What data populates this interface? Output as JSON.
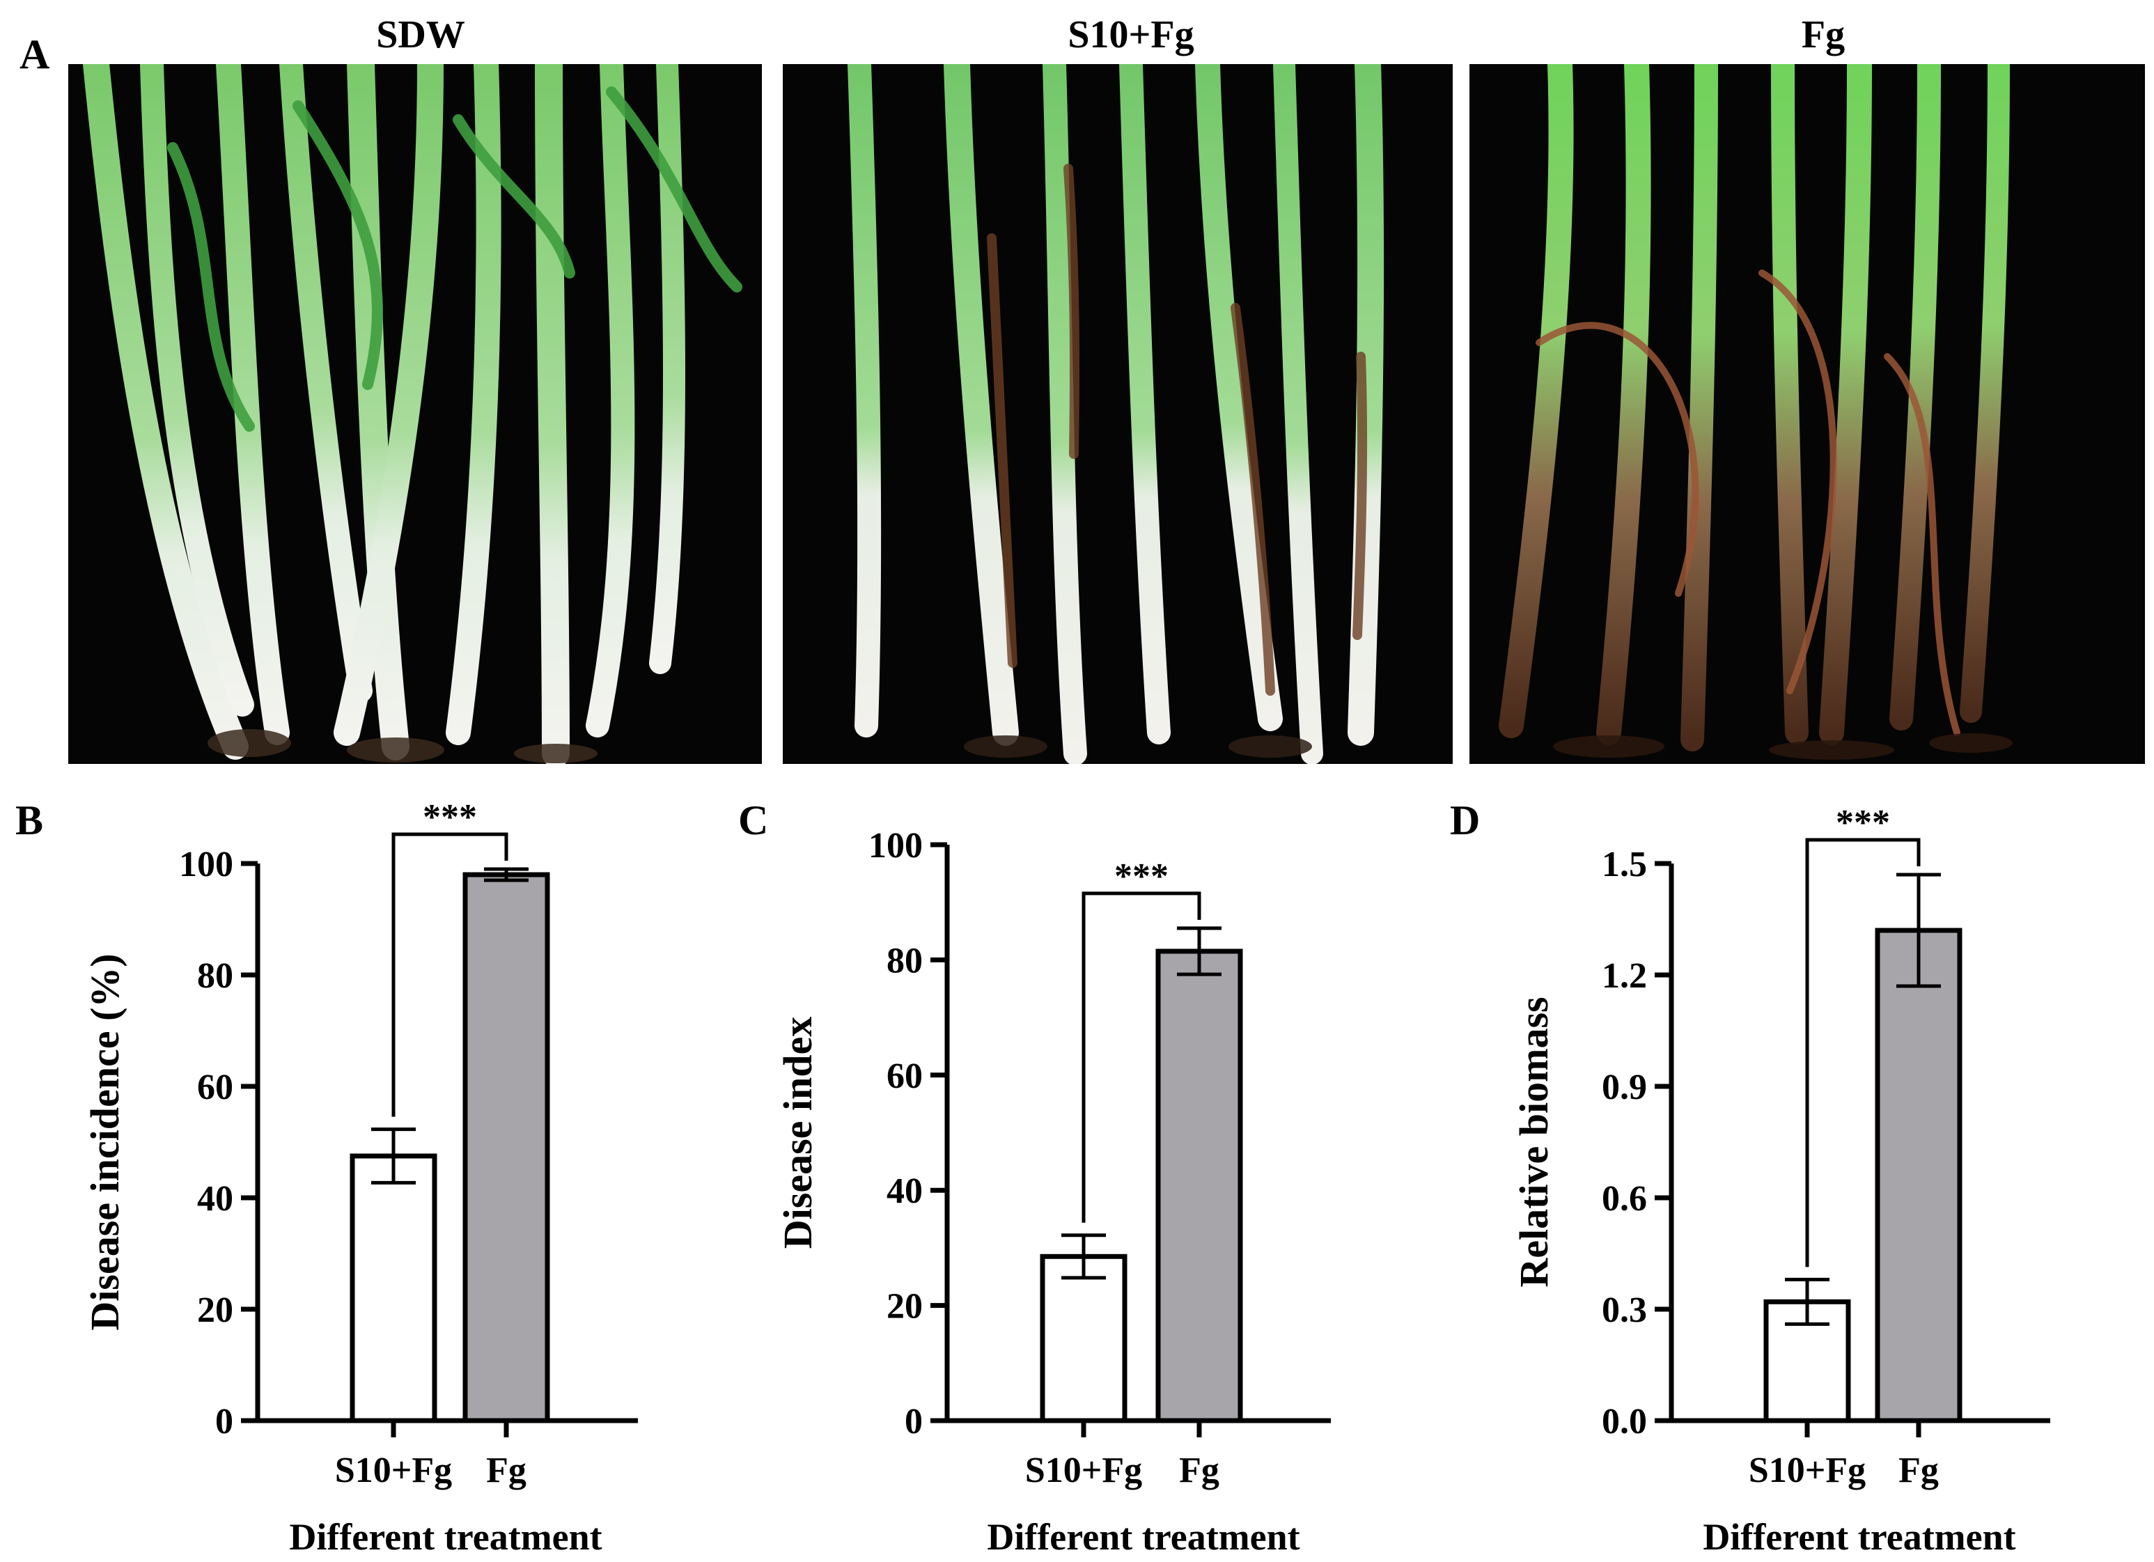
{
  "panel_labels": {
    "a": "A",
    "b": "B",
    "c": "C",
    "d": "D"
  },
  "photos": [
    {
      "title": "SDW"
    },
    {
      "title": "S10+Fg"
    },
    {
      "title": "Fg"
    }
  ],
  "colors": {
    "control_bar": "#ffffff",
    "fg_bar": "#a7a5aa",
    "photo_bg": "#050505"
  },
  "chart_data": [
    {
      "type": "bar",
      "panel": "B",
      "categories": [
        "S10+Fg",
        "Fg"
      ],
      "values": [
        47.5,
        98.0
      ],
      "errors": [
        4.8,
        1.0
      ],
      "ylabel": "Disease incidence (%)",
      "xlabel": "Different treatment",
      "ylim": [
        0,
        100
      ],
      "yticks": [
        "0",
        "20",
        "40",
        "60",
        "80",
        "100"
      ],
      "significance": "***"
    },
    {
      "type": "bar",
      "panel": "C",
      "categories": [
        "S10+Fg",
        "Fg"
      ],
      "values": [
        28.5,
        81.5
      ],
      "errors": [
        3.7,
        4.0
      ],
      "ylabel": "Disease index",
      "xlabel": "Different treatment",
      "ylim": [
        0,
        100
      ],
      "yticks": [
        "0",
        "20",
        "40",
        "60",
        "80",
        "100"
      ],
      "significance": "***"
    },
    {
      "type": "bar",
      "panel": "D",
      "categories": [
        "S10+Fg",
        "Fg"
      ],
      "values": [
        0.32,
        1.32
      ],
      "errors": [
        0.06,
        0.15
      ],
      "ylabel": "Relative biomass",
      "xlabel": "Different treatment",
      "ylim": [
        0,
        1.5
      ],
      "yticks": [
        "0.0",
        "0.3",
        "0.6",
        "0.9",
        "1.2",
        "1.5"
      ],
      "significance": "***"
    }
  ]
}
